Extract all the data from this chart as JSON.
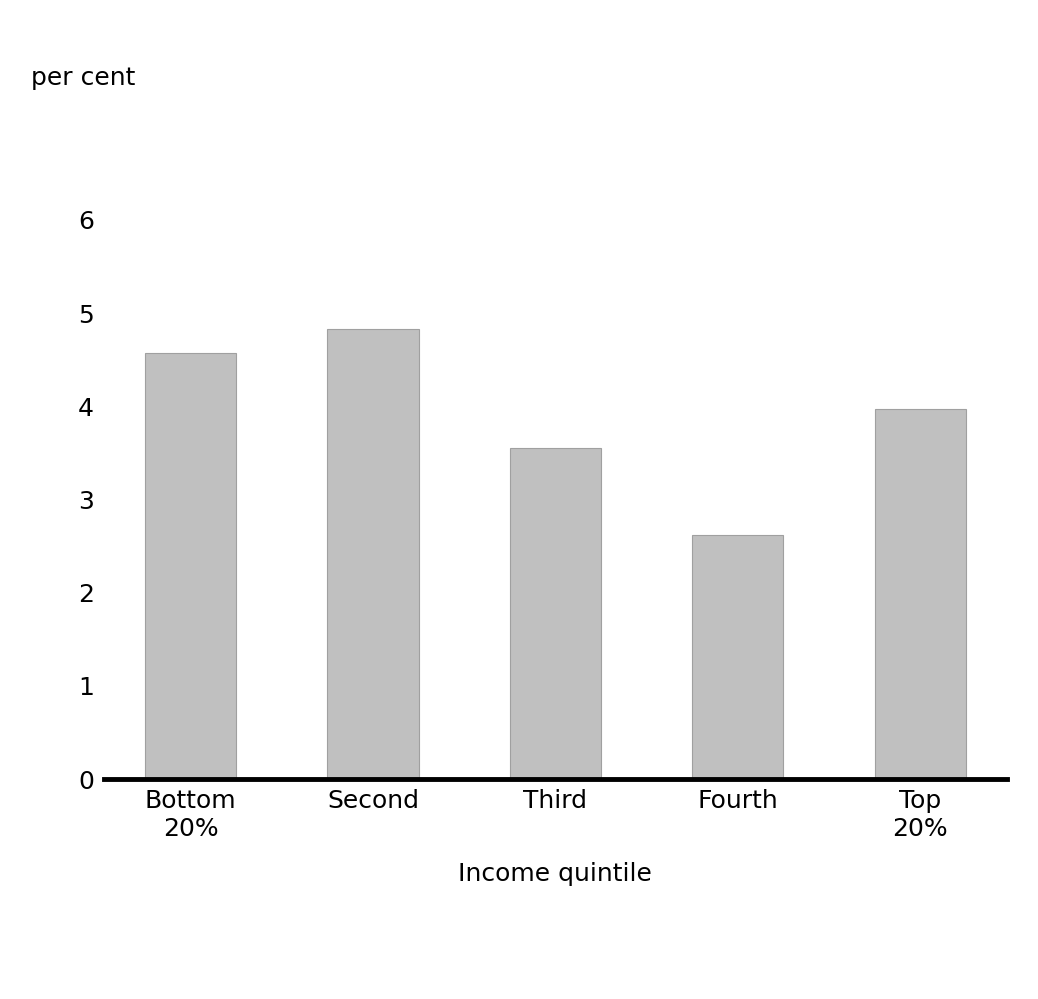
{
  "categories": [
    "Bottom\n20%",
    "Second",
    "Third",
    "Fourth",
    "Top\n20%"
  ],
  "values": [
    4.57,
    4.83,
    3.55,
    2.62,
    3.97
  ],
  "bar_color": "#c0c0c0",
  "bar_edgecolor": "#a0a0a0",
  "ylabel": "per cent",
  "xlabel": "Income quintile",
  "ylim": [
    0,
    6
  ],
  "yticks": [
    0,
    1,
    2,
    3,
    4,
    5,
    6
  ],
  "background_color": "#ffffff",
  "ylabel_fontsize": 18,
  "xlabel_fontsize": 18,
  "tick_fontsize": 18,
  "bar_width": 0.5
}
